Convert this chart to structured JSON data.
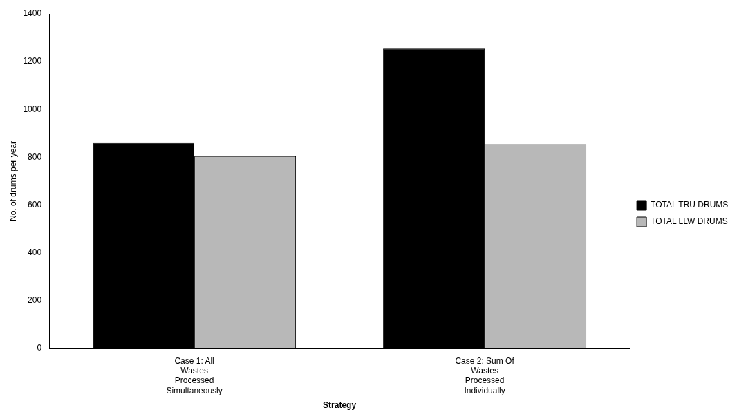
{
  "chart_data": {
    "type": "bar",
    "xlabel": "Strategy",
    "ylabel": "No. of drums per year",
    "categories": [
      "Case 1: All Wastes Processed Simultaneously",
      "Case 2: Sum Of Wastes Processed Individually"
    ],
    "series": [
      {
        "name": "TOTAL TRU DRUMS",
        "color": "#000000",
        "values": [
          860,
          1255
        ]
      },
      {
        "name": "TOTAL LLW DRUMS",
        "color": "#b8b8b8",
        "values": [
          805,
          855
        ]
      }
    ],
    "ylim": [
      0,
      1400
    ],
    "yticks": [
      0,
      200,
      400,
      600,
      800,
      1000,
      1200,
      1400
    ],
    "grid": false,
    "legend": "right"
  }
}
